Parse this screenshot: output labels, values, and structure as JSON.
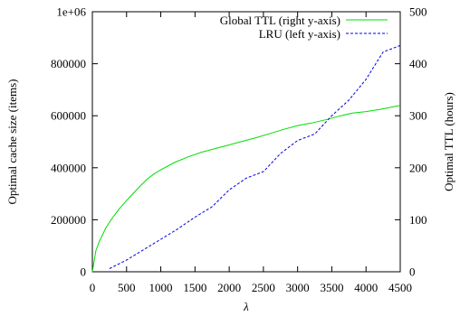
{
  "chart_data": {
    "type": "line",
    "xlabel": "λ",
    "ylabel_left": "Optimal cache size (items)",
    "ylabel_right": "Optimal TTL (hours)",
    "xlim": [
      0,
      4500
    ],
    "ylim_left": [
      0,
      1000000
    ],
    "ylim_right": [
      0,
      500
    ],
    "x_ticks": [
      "0",
      "500",
      "1000",
      "1500",
      "2000",
      "2500",
      "3000",
      "3500",
      "4000",
      "4500"
    ],
    "y_left_ticks": [
      "0",
      "200000",
      "400000",
      "600000",
      "800000",
      "1e+06"
    ],
    "y_right_ticks": [
      "0",
      "100",
      "200",
      "300",
      "400",
      "500"
    ],
    "grid": false,
    "legend_position": "top-right",
    "series": [
      {
        "name": "Global TTL (right y-axis)",
        "axis": "right",
        "color": "#00dd00",
        "style": "solid",
        "points": [
          [
            0,
            0
          ],
          [
            50,
            40
          ],
          [
            100,
            58
          ],
          [
            200,
            85
          ],
          [
            300,
            105
          ],
          [
            400,
            122
          ],
          [
            500,
            137
          ],
          [
            600,
            151
          ],
          [
            700,
            165
          ],
          [
            800,
            178
          ],
          [
            900,
            188
          ],
          [
            1000,
            196
          ],
          [
            1200,
            210
          ],
          [
            1400,
            221
          ],
          [
            1600,
            230
          ],
          [
            1800,
            237
          ],
          [
            2000,
            244
          ],
          [
            2200,
            251
          ],
          [
            2400,
            258
          ],
          [
            2600,
            266
          ],
          [
            2800,
            274
          ],
          [
            3000,
            281
          ],
          [
            3200,
            286
          ],
          [
            3400,
            292
          ],
          [
            3600,
            299
          ],
          [
            3800,
            305
          ],
          [
            4000,
            308
          ],
          [
            4200,
            312
          ],
          [
            4500,
            320
          ]
        ]
      },
      {
        "name": "LRU (left y-axis)",
        "axis": "left",
        "color": "#0000dd",
        "style": "dashed",
        "points": [
          [
            250,
            12000
          ],
          [
            500,
            45000
          ],
          [
            750,
            85000
          ],
          [
            1000,
            125000
          ],
          [
            1250,
            165000
          ],
          [
            1500,
            210000
          ],
          [
            1750,
            250000
          ],
          [
            2000,
            315000
          ],
          [
            2250,
            360000
          ],
          [
            2500,
            385000
          ],
          [
            2750,
            455000
          ],
          [
            3000,
            505000
          ],
          [
            3250,
            530000
          ],
          [
            3500,
            600000
          ],
          [
            3750,
            660000
          ],
          [
            4000,
            740000
          ],
          [
            4250,
            845000
          ],
          [
            4500,
            870000
          ]
        ]
      }
    ]
  }
}
